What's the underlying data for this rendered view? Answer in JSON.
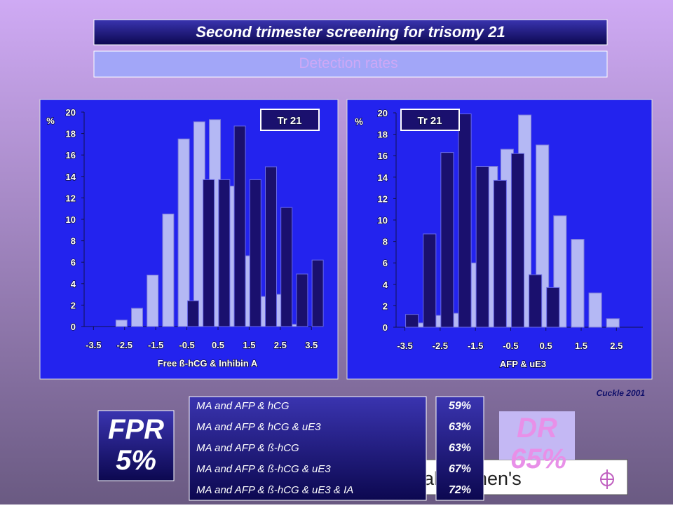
{
  "chart_data": [
    {
      "type": "bar",
      "x_label": "Free ß-hCG & Inhibin A",
      "y_label": "%",
      "xlim": [
        -3.8,
        3.9
      ],
      "xticks": [
        -3.5,
        -2.5,
        -1.5,
        -0.5,
        0.5,
        1.5,
        2.5,
        3.5
      ],
      "ylim": [
        0,
        20
      ],
      "yticks": [
        0,
        2,
        4,
        6,
        8,
        10,
        12,
        14,
        16,
        18,
        20
      ],
      "series": [
        {
          "color": "#b4b8f4",
          "x": [
            -2.6,
            -2.1,
            -1.6,
            -1.1,
            -0.6,
            -0.1,
            0.4,
            0.9,
            1.4,
            1.9,
            2.4,
            2.9
          ],
          "values": [
            0.6,
            1.7,
            4.8,
            10.5,
            17.5,
            19.1,
            19.3,
            13.1,
            6.6,
            2.8,
            3.0,
            0.2
          ]
        },
        {
          "name": "Tr 21",
          "color": "#1a106e",
          "x": [
            -0.3,
            0.2,
            0.7,
            1.2,
            1.7,
            2.2,
            2.7,
            3.2,
            3.7
          ],
          "values": [
            2.4,
            13.7,
            13.7,
            18.7,
            13.7,
            14.9,
            11.1,
            4.9,
            6.2
          ]
        }
      ]
    },
    {
      "type": "bar",
      "x_label": "AFP & uE3",
      "y_label": "%",
      "xlim": [
        -3.75,
        3.25
      ],
      "xticks": [
        -3.5,
        -2.5,
        -1.5,
        -0.5,
        0.5,
        1.5,
        2.5
      ],
      "ylim": [
        0,
        20
      ],
      "yticks": [
        0,
        2,
        4,
        6,
        8,
        10,
        12,
        14,
        16,
        18,
        20
      ],
      "series": [
        {
          "color": "#b4b8f4",
          "x": [
            -3.0,
            -2.5,
            -2.0,
            -1.55,
            -1.05,
            -0.6,
            -0.1,
            0.4,
            0.9,
            1.4,
            1.9,
            2.4
          ],
          "values": [
            0.4,
            1.1,
            1.3,
            6.0,
            15.0,
            16.6,
            19.8,
            17.0,
            10.4,
            8.2,
            3.2,
            0.8
          ]
        },
        {
          "name": "Tr 21",
          "color": "#1a106e",
          "x": [
            -3.3,
            -2.8,
            -2.3,
            -1.8,
            -1.3,
            -0.8,
            -0.3,
            0.2,
            0.7
          ],
          "values": [
            1.2,
            8.7,
            16.3,
            19.9,
            15.0,
            13.7,
            16.2,
            4.9,
            3.7
          ]
        }
      ]
    }
  ],
  "slide": {
    "title": "Second trimester screening for trisomy 21",
    "subtitle": "Detection rates",
    "citation": "Cuckle 2001",
    "rows": [
      [
        "MA and AFP & hCG",
        "59%"
      ],
      [
        "MA and AFP & hCG & uE3",
        "63%"
      ],
      [
        "MA and AFP & ß-hCG",
        "63%"
      ],
      [
        "MA and AFP & ß-hCG & uE3",
        "67%"
      ],
      [
        "MA and AFP & ß-hCG & uE3 & IA",
        "72%"
      ]
    ],
    "fpr": [
      "FPR",
      "5%"
    ],
    "dr": [
      "DR",
      "65%"
    ],
    "footer": "al Women's"
  }
}
